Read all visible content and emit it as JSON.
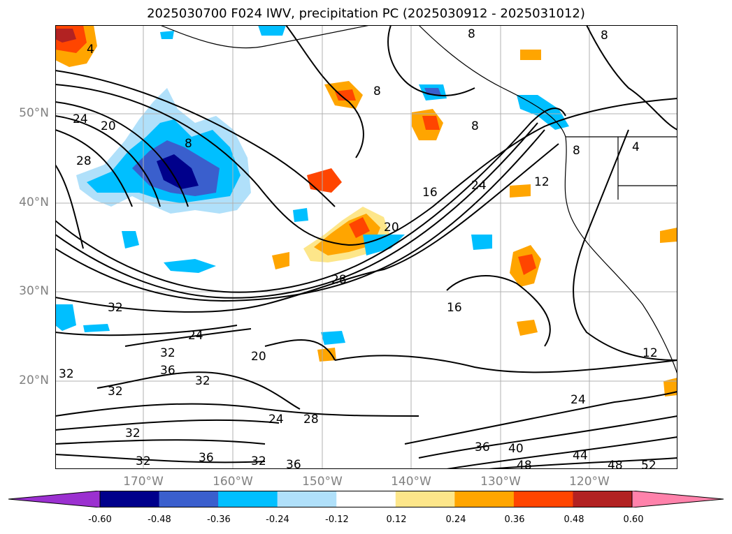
{
  "title": "2025030700 F024 IWV, precipitation PC (2025030912 - 2025031012)",
  "lat_labels": [
    "50°N",
    "40°N",
    "30°N",
    "20°N"
  ],
  "lon_labels": [
    "170°W",
    "160°W",
    "150°W",
    "140°W",
    "130°W",
    "120°W"
  ],
  "colorbar": {
    "ticks": [
      "-0.60",
      "-0.48",
      "-0.36",
      "-0.24",
      "-0.12",
      "0.12",
      "0.24",
      "0.36",
      "0.48",
      "0.60"
    ],
    "colors": [
      "#9b30d0",
      "#00008b",
      "#3a5fcd",
      "#00bfff",
      "#b0e0fa",
      "#ffffff",
      "#fde68a",
      "#ffa500",
      "#ff4500",
      "#b22222",
      "#ff82ab"
    ]
  },
  "contour_labels": [
    "4",
    "24",
    "20",
    "28",
    "8",
    "16",
    "24",
    "12",
    "8",
    "8",
    "8",
    "8",
    "8",
    "20",
    "28",
    "16",
    "32",
    "24",
    "32",
    "36",
    "32",
    "32",
    "20",
    "32",
    "24",
    "28",
    "32",
    "36",
    "32",
    "36",
    "32",
    "36",
    "40",
    "44",
    "48",
    "48",
    "52",
    "24",
    "12",
    "4"
  ]
}
